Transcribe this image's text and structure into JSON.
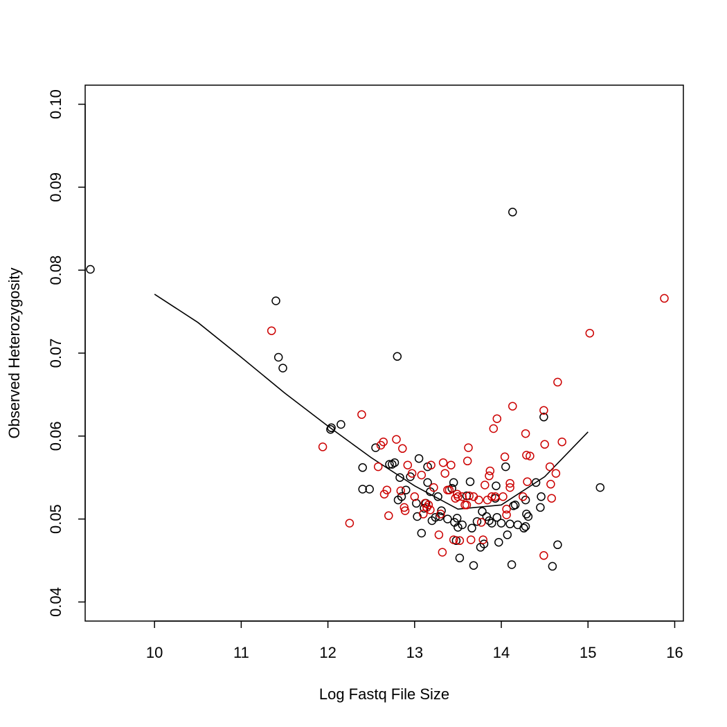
{
  "chart_data": {
    "type": "scatter",
    "title": "",
    "xlabel": "Log Fastq File Size",
    "ylabel": "Observed Heterozygosity",
    "xlim": [
      9.2,
      16.1
    ],
    "ylim": [
      0.0377,
      0.1023
    ],
    "x_ticks": [
      "10",
      "11",
      "12",
      "13",
      "14",
      "15",
      "16"
    ],
    "y_ticks": [
      "0.04",
      "0.05",
      "0.06",
      "0.07",
      "0.08",
      "0.09",
      "0.10"
    ],
    "grid": false,
    "legend": "none",
    "colors": {
      "series_black": "#000000",
      "series_red": "#cc0000",
      "fit_line": "#000000"
    },
    "series": [
      {
        "color": "#000000",
        "marker": "open-circle",
        "points": [
          [
            9.26,
            0.0801
          ],
          [
            11.4,
            0.0763
          ],
          [
            11.43,
            0.0695
          ],
          [
            11.48,
            0.0682
          ],
          [
            12.03,
            0.0608
          ],
          [
            12.04,
            0.061
          ],
          [
            12.15,
            0.0614
          ],
          [
            12.4,
            0.0536
          ],
          [
            12.4,
            0.0562
          ],
          [
            12.48,
            0.0536
          ],
          [
            12.55,
            0.0586
          ],
          [
            12.71,
            0.0566
          ],
          [
            12.74,
            0.0566
          ],
          [
            12.77,
            0.0568
          ],
          [
            12.8,
            0.0696
          ],
          [
            12.81,
            0.0523
          ],
          [
            12.83,
            0.055
          ],
          [
            12.85,
            0.0527
          ],
          [
            12.9,
            0.0535
          ],
          [
            12.95,
            0.0551
          ],
          [
            13.02,
            0.0519
          ],
          [
            13.03,
            0.0503
          ],
          [
            13.05,
            0.0573
          ],
          [
            13.08,
            0.0483
          ],
          [
            13.11,
            0.0513
          ],
          [
            13.13,
            0.0519
          ],
          [
            13.15,
            0.0563
          ],
          [
            13.15,
            0.0544
          ],
          [
            13.18,
            0.0533
          ],
          [
            13.2,
            0.0498
          ],
          [
            13.24,
            0.0502
          ],
          [
            13.27,
            0.0527
          ],
          [
            13.29,
            0.0503
          ],
          [
            13.31,
            0.051
          ],
          [
            13.38,
            0.05
          ],
          [
            13.43,
            0.0537
          ],
          [
            13.45,
            0.0544
          ],
          [
            13.46,
            0.0496
          ],
          [
            13.48,
            0.0474
          ],
          [
            13.49,
            0.0501
          ],
          [
            13.5,
            0.049
          ],
          [
            13.52,
            0.0453
          ],
          [
            13.55,
            0.0493
          ],
          [
            13.6,
            0.0528
          ],
          [
            13.64,
            0.0545
          ],
          [
            13.66,
            0.0489
          ],
          [
            13.68,
            0.0444
          ],
          [
            13.72,
            0.0497
          ],
          [
            13.76,
            0.0466
          ],
          [
            13.78,
            0.0509
          ],
          [
            13.8,
            0.047
          ],
          [
            13.83,
            0.0503
          ],
          [
            13.86,
            0.0498
          ],
          [
            13.89,
            0.0495
          ],
          [
            13.93,
            0.0525
          ],
          [
            13.94,
            0.054
          ],
          [
            13.95,
            0.0502
          ],
          [
            13.97,
            0.0472
          ],
          [
            14.0,
            0.0495
          ],
          [
            14.05,
            0.0563
          ],
          [
            14.07,
            0.0481
          ],
          [
            14.1,
            0.0494
          ],
          [
            14.12,
            0.0445
          ],
          [
            14.13,
            0.087
          ],
          [
            14.14,
            0.0516
          ],
          [
            14.16,
            0.0517
          ],
          [
            14.19,
            0.0493
          ],
          [
            14.26,
            0.0489
          ],
          [
            14.28,
            0.0491
          ],
          [
            14.28,
            0.0523
          ],
          [
            14.29,
            0.0506
          ],
          [
            14.31,
            0.0503
          ],
          [
            14.4,
            0.0544
          ],
          [
            14.45,
            0.0514
          ],
          [
            14.46,
            0.0527
          ],
          [
            14.49,
            0.0623
          ],
          [
            14.59,
            0.0443
          ],
          [
            14.65,
            0.0469
          ],
          [
            15.14,
            0.0538
          ]
        ]
      },
      {
        "color": "#cc0000",
        "marker": "open-circle",
        "points": [
          [
            11.35,
            0.0727
          ],
          [
            11.94,
            0.0587
          ],
          [
            12.25,
            0.0495
          ],
          [
            12.39,
            0.0626
          ],
          [
            12.58,
            0.0563
          ],
          [
            12.61,
            0.0589
          ],
          [
            12.64,
            0.0593
          ],
          [
            12.65,
            0.053
          ],
          [
            12.68,
            0.0535
          ],
          [
            12.7,
            0.0504
          ],
          [
            12.79,
            0.0596
          ],
          [
            12.84,
            0.0534
          ],
          [
            12.86,
            0.0585
          ],
          [
            12.88,
            0.0514
          ],
          [
            12.89,
            0.051
          ],
          [
            12.92,
            0.0565
          ],
          [
            12.97,
            0.0555
          ],
          [
            13.0,
            0.0527
          ],
          [
            13.08,
            0.0553
          ],
          [
            13.1,
            0.0506
          ],
          [
            13.12,
            0.0519
          ],
          [
            13.14,
            0.0514
          ],
          [
            13.16,
            0.0517
          ],
          [
            13.18,
            0.0511
          ],
          [
            13.19,
            0.0565
          ],
          [
            13.22,
            0.0538
          ],
          [
            13.28,
            0.0481
          ],
          [
            13.3,
            0.0506
          ],
          [
            13.32,
            0.046
          ],
          [
            13.33,
            0.0568
          ],
          [
            13.35,
            0.0555
          ],
          [
            13.38,
            0.0535
          ],
          [
            13.4,
            0.0535
          ],
          [
            13.42,
            0.0565
          ],
          [
            13.45,
            0.0475
          ],
          [
            13.47,
            0.0525
          ],
          [
            13.49,
            0.053
          ],
          [
            13.5,
            0.0527
          ],
          [
            13.52,
            0.0474
          ],
          [
            13.55,
            0.0527
          ],
          [
            13.58,
            0.0517
          ],
          [
            13.6,
            0.0517
          ],
          [
            13.61,
            0.057
          ],
          [
            13.62,
            0.0586
          ],
          [
            13.63,
            0.0528
          ],
          [
            13.65,
            0.0475
          ],
          [
            13.68,
            0.0527
          ],
          [
            13.74,
            0.0523
          ],
          [
            13.77,
            0.0496
          ],
          [
            13.79,
            0.0475
          ],
          [
            13.81,
            0.0541
          ],
          [
            13.84,
            0.0523
          ],
          [
            13.86,
            0.0552
          ],
          [
            13.87,
            0.0558
          ],
          [
            13.89,
            0.0527
          ],
          [
            13.91,
            0.0609
          ],
          [
            13.93,
            0.0527
          ],
          [
            13.95,
            0.0621
          ],
          [
            14.02,
            0.0527
          ],
          [
            14.04,
            0.0575
          ],
          [
            14.06,
            0.0505
          ],
          [
            14.06,
            0.0512
          ],
          [
            14.1,
            0.0543
          ],
          [
            14.1,
            0.0538
          ],
          [
            14.13,
            0.0636
          ],
          [
            14.25,
            0.0527
          ],
          [
            14.28,
            0.0603
          ],
          [
            14.29,
            0.0577
          ],
          [
            14.3,
            0.0545
          ],
          [
            14.33,
            0.0576
          ],
          [
            14.49,
            0.0456
          ],
          [
            14.49,
            0.0631
          ],
          [
            14.5,
            0.059
          ],
          [
            14.56,
            0.0563
          ],
          [
            14.57,
            0.0542
          ],
          [
            14.58,
            0.0525
          ],
          [
            14.63,
            0.0555
          ],
          [
            14.65,
            0.0665
          ],
          [
            14.7,
            0.0593
          ],
          [
            15.02,
            0.0724
          ],
          [
            15.88,
            0.0766
          ]
        ]
      }
    ],
    "fit_line": {
      "color": "#000000",
      "points": [
        [
          10.0,
          0.0771
        ],
        [
          10.5,
          0.0737
        ],
        [
          11.0,
          0.0695
        ],
        [
          11.5,
          0.0652
        ],
        [
          12.0,
          0.0612
        ],
        [
          12.5,
          0.0574
        ],
        [
          13.0,
          0.054
        ],
        [
          13.5,
          0.0512
        ],
        [
          14.0,
          0.0517
        ],
        [
          14.5,
          0.0551
        ],
        [
          15.0,
          0.0605
        ]
      ]
    }
  }
}
